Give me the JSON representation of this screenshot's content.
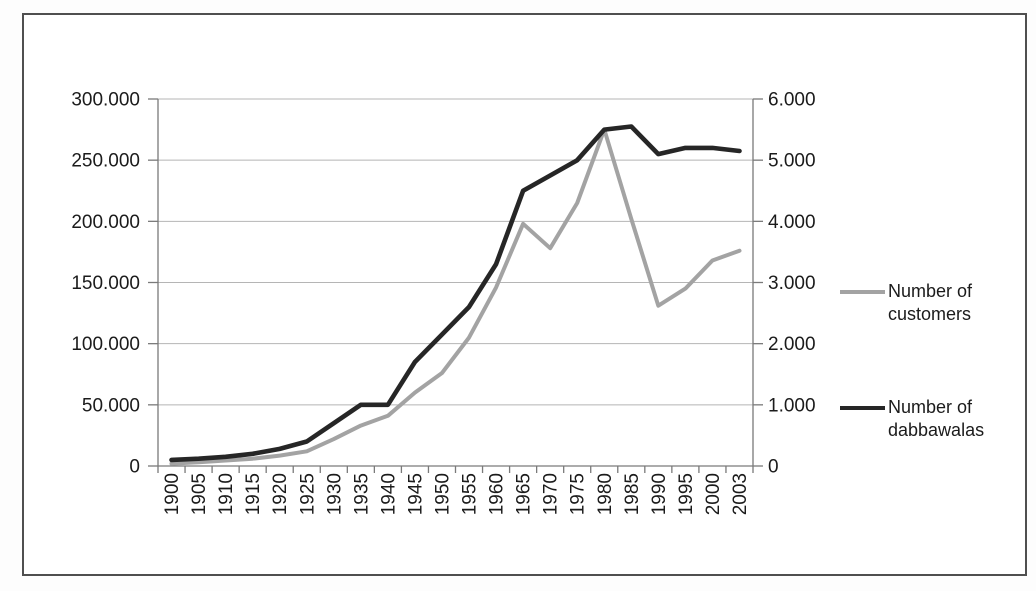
{
  "chart_data": {
    "type": "line",
    "title": "",
    "categories": [
      "1900",
      "1905",
      "1910",
      "1915",
      "1920",
      "1925",
      "1930",
      "1935",
      "1940",
      "1945",
      "1950",
      "1955",
      "1960",
      "1965",
      "1970",
      "1975",
      "1980",
      "1985",
      "1990",
      "1995",
      "2000",
      "2003"
    ],
    "series": [
      {
        "name": "Number of customers",
        "axis": "left",
        "color": "#a3a3a3",
        "values": [
          2000,
          3000,
          4500,
          6000,
          8500,
          12000,
          22000,
          33000,
          41000,
          60000,
          76000,
          105000,
          146000,
          198000,
          178000,
          215000,
          275000,
          202000,
          131000,
          145000,
          168000,
          176000
        ]
      },
      {
        "name": "Number of dabbawalas",
        "axis": "right",
        "color": "#262626",
        "values": [
          100,
          120,
          150,
          200,
          280,
          400,
          700,
          1000,
          1000,
          1700,
          2150,
          2600,
          3300,
          4500,
          4750,
          5000,
          5500,
          5550,
          5100,
          5200,
          5200,
          5150
        ]
      }
    ],
    "left_axis": {
      "label": "",
      "min": 0,
      "max": 300000,
      "tick_step": 50000,
      "tick_labels": [
        "0",
        "50.000",
        "100.000",
        "150.000",
        "200.000",
        "250.000",
        "300.000"
      ]
    },
    "right_axis": {
      "label": "",
      "min": 0,
      "max": 6000,
      "tick_step": 1000,
      "tick_labels": [
        "0",
        "1.000",
        "2.000",
        "3.000",
        "4.000",
        "5.000",
        "6.000"
      ]
    },
    "grid": true,
    "legend_position": "right",
    "x_tick_label_rotation": -90
  },
  "colors": {
    "gridline": "#b5b5b5",
    "axis": "#7a7a7a",
    "tick_text": "#1b1b1b",
    "frame": "#4f4f4f",
    "background": "#ffffff"
  }
}
